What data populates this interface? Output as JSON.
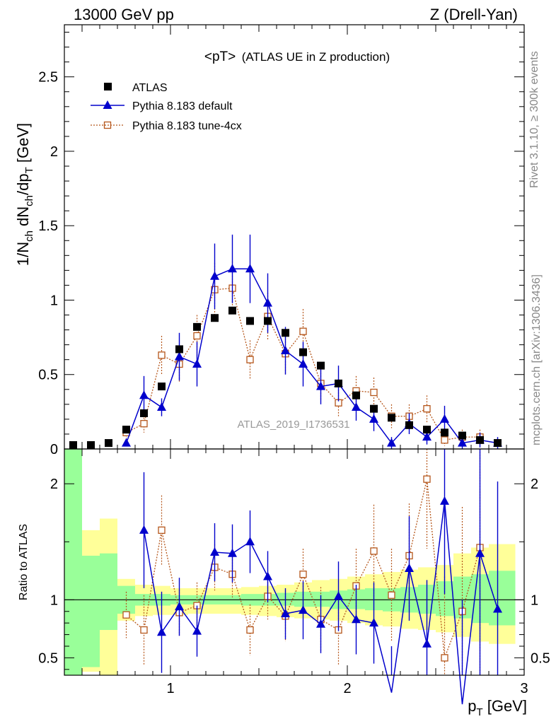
{
  "header": {
    "left": "13000 GeV pp",
    "right": "Z (Drell-Yan)"
  },
  "side_labels": {
    "rivet": "Rivet 3.1.10, ≥ 300k events",
    "mcplots": "mcplots.cern.ch [arXiv:1306.3436]"
  },
  "chart_data": {
    "type": "scatter",
    "title": "<pT> (ATLAS UE in Z production)",
    "title_main": "<pT>",
    "title_sub": "(ATLAS UE in Z production)",
    "watermark": "ATLAS_2019_I1736531",
    "ylabel": "1/N_ch dN_ch/dp_T [GeV]",
    "ylabel_parts": {
      "a": "1/N",
      "a_sub": "ch",
      "b": " dN",
      "b_sub": "ch",
      "c": "/dp",
      "c_sub": "T",
      "d": " [GeV]"
    },
    "xlabel": "p_T [GeV]",
    "xlabel_parts": {
      "main": "p",
      "sub": "T",
      "unit": " [GeV]"
    },
    "xlim": [
      0.4,
      3.0
    ],
    "ylim": [
      0,
      2.85
    ],
    "x_ticks": [
      1,
      2,
      3
    ],
    "x_tick_labels": [
      "1",
      "2",
      "3"
    ],
    "y_ticks": [
      0,
      0.5,
      1,
      1.5,
      2,
      2.5
    ],
    "y_tick_labels": [
      "0",
      "0.5",
      "1",
      "1.5",
      "2",
      "2.5"
    ],
    "x": [
      0.45,
      0.55,
      0.65,
      0.75,
      0.85,
      0.95,
      1.05,
      1.15,
      1.25,
      1.35,
      1.45,
      1.55,
      1.65,
      1.75,
      1.85,
      1.95,
      2.05,
      2.15,
      2.25,
      2.35,
      2.45,
      2.55,
      2.65,
      2.75,
      2.85
    ],
    "legend": [
      "ATLAS",
      "Pythia 8.183 default",
      "Pythia 8.183 tune-4cx"
    ],
    "series": [
      {
        "name": "ATLAS",
        "color": "#000000",
        "values": [
          0.0,
          0.01,
          0.04,
          0.13,
          0.24,
          0.42,
          0.67,
          0.82,
          0.88,
          0.93,
          0.86,
          0.86,
          0.78,
          0.65,
          0.56,
          0.44,
          0.36,
          0.27,
          0.21,
          0.16,
          0.13,
          0.11,
          0.09,
          0.06,
          0.04
        ]
      },
      {
        "name": "Pythia 8.183 default",
        "color": "#0000cc",
        "values": [
          null,
          null,
          null,
          0.04,
          0.36,
          0.28,
          0.62,
          0.57,
          1.16,
          1.21,
          1.21,
          0.98,
          0.66,
          0.57,
          0.42,
          0.44,
          0.28,
          0.2,
          0.04,
          0.17,
          0.08,
          0.2,
          0.04,
          0.06,
          0.04
        ],
        "errors": [
          null,
          null,
          null,
          0.02,
          0.13,
          0.06,
          0.16,
          0.15,
          0.22,
          0.23,
          0.23,
          0.2,
          0.16,
          0.15,
          0.12,
          0.12,
          0.09,
          0.08,
          0.04,
          0.07,
          0.05,
          0.09,
          0.04,
          0.05,
          0.04
        ],
        "ratio": [
          null,
          null,
          null,
          null,
          1.6,
          0.72,
          0.94,
          0.73,
          1.41,
          1.4,
          1.5,
          1.2,
          0.88,
          0.91,
          0.79,
          1.03,
          0.83,
          0.8,
          0.2,
          1.27,
          0.62,
          1.85,
          0.1,
          1.4,
          0.92
        ],
        "ratio_errors": [
          null,
          null,
          null,
          null,
          0.5,
          0.35,
          0.25,
          0.22,
          0.25,
          0.25,
          0.27,
          0.22,
          0.22,
          0.25,
          0.25,
          0.3,
          0.3,
          0.35,
          0.4,
          0.45,
          0.55,
          0.8,
          0.9,
          1.2,
          1.1
        ]
      },
      {
        "name": "Pythia 8.183 tune-4cx",
        "color": "#b5561b",
        "values": [
          null,
          null,
          null,
          0.11,
          0.17,
          0.63,
          0.57,
          0.76,
          1.07,
          1.08,
          0.6,
          0.89,
          0.64,
          0.79,
          0.44,
          0.31,
          0.39,
          0.38,
          0.22,
          0.22,
          0.27,
          0.06,
          0.08,
          0.08,
          null
        ],
        "errors": [
          null,
          null,
          null,
          0.04,
          0.06,
          0.13,
          0.12,
          0.14,
          0.18,
          0.18,
          0.13,
          0.16,
          0.14,
          0.15,
          0.11,
          0.09,
          0.1,
          0.1,
          0.08,
          0.08,
          0.09,
          0.04,
          0.05,
          0.05,
          null
        ],
        "ratio": [
          null,
          null,
          null,
          0.87,
          0.74,
          1.6,
          0.89,
          0.95,
          1.28,
          1.22,
          0.74,
          1.03,
          0.86,
          1.22,
          0.83,
          0.74,
          1.12,
          1.42,
          1.04,
          1.38,
          2.04,
          0.5,
          0.9,
          1.45,
          null
        ],
        "ratio_errors": [
          null,
          null,
          null,
          0.2,
          0.3,
          0.3,
          0.2,
          0.2,
          0.2,
          0.2,
          0.22,
          0.2,
          0.22,
          0.22,
          0.28,
          0.3,
          0.32,
          0.4,
          0.4,
          0.45,
          0.6,
          0.7,
          0.9,
          1.1,
          null
        ]
      }
    ],
    "ratio_panel": {
      "ylabel": "Ratio to ATLAS",
      "ylim": [
        0.35,
        2.3
      ],
      "y_ticks": [
        0.5,
        1,
        2
      ],
      "y_tick_labels": [
        "0.5",
        "1",
        "2"
      ],
      "band_bins": [
        [
          0.4,
          0.5
        ],
        [
          0.5,
          0.6
        ],
        [
          0.6,
          0.7
        ],
        [
          0.7,
          0.8
        ],
        [
          0.8,
          0.9
        ],
        [
          0.9,
          1.0
        ],
        [
          1.0,
          1.1
        ],
        [
          1.1,
          1.2
        ],
        [
          1.2,
          1.3
        ],
        [
          1.3,
          1.4
        ],
        [
          1.4,
          1.5
        ],
        [
          1.5,
          1.6
        ],
        [
          1.6,
          1.7
        ],
        [
          1.7,
          1.8
        ],
        [
          1.8,
          1.9
        ],
        [
          1.9,
          2.0
        ],
        [
          2.0,
          2.1
        ],
        [
          2.1,
          2.2
        ],
        [
          2.2,
          2.3
        ],
        [
          2.3,
          2.4
        ],
        [
          2.4,
          2.5
        ],
        [
          2.5,
          2.6
        ],
        [
          2.6,
          2.7
        ],
        [
          2.7,
          2.8
        ],
        [
          2.8,
          2.95
        ]
      ],
      "stat_band": [
        [
          0.35,
          2.3
        ],
        [
          0.42,
          1.38
        ],
        [
          0.74,
          1.4
        ],
        [
          0.88,
          1.12
        ],
        [
          0.95,
          1.05
        ],
        [
          0.95,
          1.05
        ],
        [
          0.96,
          1.04
        ],
        [
          0.96,
          1.04
        ],
        [
          0.96,
          1.04
        ],
        [
          0.96,
          1.04
        ],
        [
          0.95,
          1.05
        ],
        [
          0.95,
          1.05
        ],
        [
          0.95,
          1.06
        ],
        [
          0.94,
          1.07
        ],
        [
          0.94,
          1.07
        ],
        [
          0.92,
          1.08
        ],
        [
          0.92,
          1.09
        ],
        [
          0.91,
          1.1
        ],
        [
          0.9,
          1.1
        ],
        [
          0.89,
          1.11
        ],
        [
          0.88,
          1.13
        ],
        [
          0.86,
          1.16
        ],
        [
          0.84,
          1.2
        ],
        [
          0.8,
          1.22
        ],
        [
          0.78,
          1.25
        ]
      ],
      "total_band": [
        [
          0.35,
          2.3
        ],
        [
          0.38,
          1.6
        ],
        [
          0.35,
          1.7
        ],
        [
          0.82,
          1.18
        ],
        [
          0.86,
          1.13
        ],
        [
          0.87,
          1.12
        ],
        [
          0.87,
          1.1
        ],
        [
          0.88,
          1.1
        ],
        [
          0.88,
          1.1
        ],
        [
          0.88,
          1.1
        ],
        [
          0.87,
          1.11
        ],
        [
          0.86,
          1.12
        ],
        [
          0.85,
          1.13
        ],
        [
          0.84,
          1.15
        ],
        [
          0.83,
          1.17
        ],
        [
          0.82,
          1.18
        ],
        [
          0.8,
          1.2
        ],
        [
          0.78,
          1.22
        ],
        [
          0.77,
          1.24
        ],
        [
          0.75,
          1.26
        ],
        [
          0.74,
          1.28
        ],
        [
          0.72,
          1.3
        ],
        [
          0.68,
          1.4
        ],
        [
          0.64,
          1.45
        ],
        [
          0.62,
          1.48
        ]
      ],
      "stat_color": "#99ff99",
      "total_color": "#ffff99"
    }
  }
}
